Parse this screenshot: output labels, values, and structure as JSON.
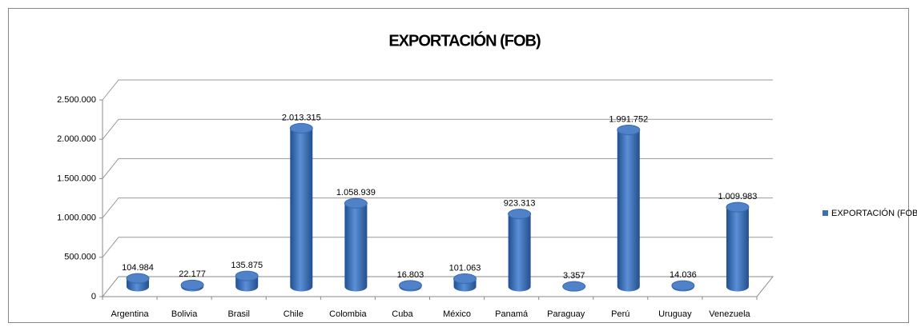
{
  "chart_data": {
    "type": "bar3d",
    "title": "EXPORTACIÓN (FOB)",
    "categories": [
      "Argentina",
      "Bolivia",
      "Brasil",
      "Chile",
      "Colombia",
      "Cuba",
      "México",
      "Panamá",
      "Paraguay",
      "Perú",
      "Uruguay",
      "Venezuela"
    ],
    "series": [
      {
        "name": "EXPORTACIÓN (FOB)",
        "color": "#3b6fb6",
        "values": [
          104984,
          22177,
          135875,
          2013315,
          1058939,
          16803,
          101063,
          923313,
          3357,
          1991752,
          14036,
          1009983
        ],
        "value_labels": [
          "104.984",
          "22.177",
          "135.875",
          "2.013.315",
          "1.058.939",
          "16.803",
          "101.063",
          "923.313",
          "3.357",
          "1.991.752",
          "14.036",
          "1.009.983"
        ]
      }
    ],
    "ylim": [
      0,
      2500000
    ],
    "yticks": [
      0,
      {
        "value": 500000,
        "label": "500.000"
      },
      {
        "value": 1000000,
        "label": "1.000.000"
      },
      {
        "value": 1500000,
        "label": "1.500.000"
      },
      {
        "value": 2000000,
        "label": "2.000.000"
      },
      {
        "value": 2500000,
        "label": "2.500.000"
      }
    ],
    "grid": true,
    "legend": "right"
  }
}
